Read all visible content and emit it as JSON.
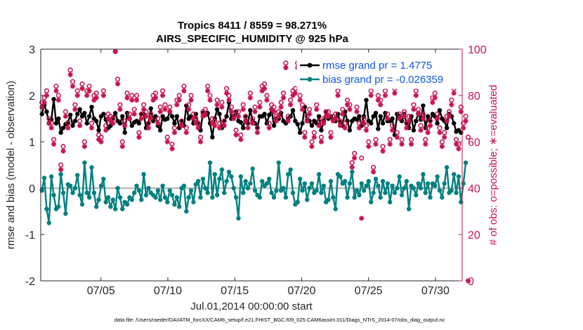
{
  "chart_data": {
    "type": "line",
    "title": "Tropics 8411 / 8559 = 98.271%",
    "subtitle": "AIRS_SPECIFIC_HUMIDITY @ 925 hPa",
    "xlabel": "Jul.01,2014 00:00:00 start",
    "ylabel": "rmse and bias (model - observation)",
    "y2label": "# of obs: o=possible; ∗=evaluated",
    "xlim": [
      0,
      31.5
    ],
    "ylim": [
      -2,
      3
    ],
    "y2lim": [
      0,
      100
    ],
    "x_ticks": [
      4.5,
      9.5,
      14.5,
      19.5,
      24.5,
      29.5
    ],
    "x_tick_labels": [
      "07/05",
      "07/10",
      "07/15",
      "07/20",
      "07/25",
      "07/30"
    ],
    "y_ticks": [
      -2,
      -1,
      0,
      1,
      2,
      3
    ],
    "y_tick_labels": [
      "-2",
      "-1",
      "0",
      "1",
      "2",
      "3"
    ],
    "y2_ticks": [
      0,
      20,
      40,
      60,
      80,
      100
    ],
    "y2_tick_labels": [
      "0",
      "20",
      "40",
      "60",
      "80",
      "100"
    ],
    "grid": false,
    "legend_position": "top-right",
    "series": [
      {
        "name": "rmse grand pr = 1.4775",
        "axis": "left",
        "color": "#000000",
        "marker": "filled-circle",
        "values": [
          1.6,
          1.8,
          1.65,
          1.4,
          1.48,
          1.92,
          1.4,
          1.5,
          1.2,
          1.3,
          1.38,
          1.42,
          1.58,
          1.35,
          1.45,
          1.6,
          1.7,
          1.55,
          1.62,
          1.4,
          1.55,
          1.75,
          1.5,
          1.45,
          1.25,
          1.55,
          1.6,
          1.48,
          1.3,
          1.35,
          1.52,
          1.62,
          1.45,
          1.4,
          1.55,
          1.2,
          1.62,
          1.5,
          1.35,
          1.42,
          1.45,
          1.4,
          1.6,
          1.6,
          1.3,
          1.4,
          1.72,
          1.45,
          1.55,
          1.35,
          1.25,
          1.55,
          1.48,
          1.5,
          1.65,
          1.55,
          1.4,
          1.55,
          1.3,
          1.45,
          1.35,
          1.78,
          1.5,
          1.55,
          1.4,
          1.6,
          1.4,
          1.25,
          1.62,
          1.58,
          1.62,
          1.4,
          1.1,
          1.5,
          1.7,
          1.6,
          1.3,
          1.45,
          1.55,
          1.85,
          1.5,
          1.55,
          1.65,
          1.45,
          1.42,
          1.3,
          1.55,
          1.4,
          1.68,
          1.45,
          1.4,
          1.3,
          1.55,
          1.55,
          1.6,
          1.4,
          1.58,
          1.7,
          1.35,
          1.5,
          1.5,
          1.62,
          1.45,
          1.4,
          1.5,
          1.55,
          1.68,
          1.45,
          1.38,
          1.2,
          1.4,
          1.75,
          1.48,
          1.45,
          1.35,
          1.45,
          1.4,
          1.55,
          1.25,
          1.45,
          1.65,
          1.5,
          1.55,
          1.48,
          1.45,
          1.6,
          1.42,
          1.35,
          1.65,
          1.45,
          1.25,
          1.45,
          1.5,
          1.48,
          1.55,
          1.35,
          1.55,
          1.9,
          1.45,
          1.4,
          1.55,
          1.62,
          1.28,
          1.55,
          1.4,
          1.62,
          1.45,
          1.45,
          1.5,
          1.15,
          1.6,
          1.55,
          1.45,
          1.6,
          1.4,
          1.3,
          1.55,
          1.25,
          1.45,
          1.62,
          1.48,
          1.78,
          1.3,
          1.55,
          1.45,
          1.6,
          1.55,
          1.4,
          1.68,
          1.5,
          1.45,
          1.3,
          1.6,
          1.55,
          1.4,
          1.22,
          1.25,
          1.2
        ]
      },
      {
        "name": "bias grand pr = -0.026359",
        "axis": "left",
        "color": "#008080",
        "marker": "filled-circle",
        "values": [
          -0.05,
          0.22,
          -0.45,
          -0.75,
          0.25,
          -0.15,
          -0.45,
          -0.4,
          0.3,
          -0.1,
          -0.55,
          0.08,
          0.05,
          -0.1,
          0.0,
          0.28,
          -0.15,
          -0.35,
          0.55,
          -0.1,
          -0.2,
          0.45,
          -0.1,
          -0.4,
          -0.25,
          0.05,
          0.2,
          -0.3,
          -0.2,
          -0.4,
          -0.25,
          -0.45,
          0.0,
          -0.2,
          -0.45,
          -0.3,
          -0.35,
          -0.2,
          -0.25,
          -0.1,
          0.05,
          -0.05,
          -0.25,
          0.3,
          -0.15,
          0.0,
          -0.1,
          -0.15,
          -0.2,
          -0.05,
          -0.25,
          0.05,
          -0.2,
          -0.3,
          -0.05,
          -0.15,
          -0.35,
          -0.2,
          -0.4,
          0.0,
          0.05,
          -0.5,
          -0.2,
          -0.05,
          -0.3,
          0.08,
          0.15,
          -0.2,
          0.2,
          0.0,
          -0.1,
          0.55,
          -0.2,
          0.3,
          -0.15,
          0.2,
          0.4,
          -0.1,
          0.15,
          0.35,
          0.25,
          0.0,
          -0.2,
          -0.65,
          0.25,
          -0.1,
          0.15,
          0.0,
          0.1,
          0.42,
          -0.05,
          -0.15,
          -0.2,
          0.15,
          0.05,
          0.1,
          0.2,
          -0.1,
          -0.2,
          -0.05,
          0.55,
          -0.05,
          0.0,
          -0.2,
          0.3,
          0.4,
          -0.1,
          -0.35,
          -0.3,
          0.2,
          -0.05,
          0.1,
          -0.25,
          0.0,
          0.1,
          -0.1,
          -0.05,
          0.3,
          -0.1,
          0.05,
          -0.3,
          -0.25,
          0.15,
          -0.2,
          -0.45,
          0.3,
          0.25,
          0.1,
          0.15,
          -0.2,
          0.1,
          0.35,
          -0.2,
          -0.05,
          -0.15,
          0.1,
          -0.05,
          0.05,
          0.15,
          -0.3,
          -0.1,
          0.2,
          0.05,
          -0.2,
          0.15,
          -0.1,
          0.1,
          -0.3,
          0.05,
          -0.1,
          0.0,
          0.25,
          -0.15,
          0.0,
          0.15,
          -0.45,
          0.05,
          0.0,
          -0.15,
          0.1,
          0.0,
          0.3,
          -0.1,
          0.1,
          -0.2,
          0.1,
          0.05,
          0.25,
          -0.05,
          -0.2,
          0.1,
          0.45,
          -0.1,
          -0.05,
          0.3,
          -0.1,
          0.25,
          -0.3,
          0.1,
          0.55
        ]
      },
      {
        "name": "possible",
        "axis": "right",
        "color": "#c8154d",
        "marker": "circle",
        "values": [
          77,
          79,
          82,
          70,
          68,
          61,
          84,
          80,
          50,
          58,
          73,
          68,
          91,
          86,
          76,
          82,
          69,
          85,
          60,
          82,
          84,
          68,
          80,
          81,
          63,
          62,
          82,
          67,
          72,
          71,
          70,
          99,
          87,
          76,
          60,
          69,
          81,
          72,
          80,
          74,
          80,
          64,
          72,
          76,
          73,
          68,
          72,
          80,
          81,
          70,
          75,
          82,
          76,
          62,
          75,
          59,
          66,
          78,
          80,
          69,
          84,
          66,
          76,
          80,
          72,
          70,
          68,
          62,
          73,
          74,
          84,
          80,
          70,
          69,
          78,
          68,
          77,
          69,
          83,
          80,
          75,
          72,
          65,
          73,
          63,
          76,
          71,
          68,
          81,
          70,
          75,
          66,
          77,
          84,
          85,
          80,
          68,
          76,
          75,
          71,
          73,
          77,
          81,
          94,
          71,
          78,
          82,
          83,
          94,
          80,
          76,
          64,
          71,
          74,
          60,
          64,
          76,
          69,
          62,
          70,
          73,
          73,
          64,
          71,
          72,
          82,
          69,
          74,
          68,
          78,
          76,
          51,
          55,
          75,
          68,
          53,
          70,
          67,
          60,
          82,
          49,
          61,
          80,
          78,
          58,
          82,
          72,
          61,
          67,
          83,
          64,
          72,
          61,
          73,
          68,
          71,
          61,
          76,
          82,
          74,
          67,
          72,
          61,
          66,
          69,
          79,
          81,
          72,
          66,
          60,
          64,
          71,
          73,
          78,
          83,
          61,
          59,
          75,
          68,
          71,
          62
        ]
      },
      {
        "name": "evaluated",
        "axis": "right",
        "color": "#c8154d",
        "marker": "asterisk",
        "values": [
          75,
          77,
          80,
          68,
          66,
          59,
          82,
          78,
          48,
          56,
          71,
          66,
          89,
          84,
          74,
          80,
          67,
          83,
          58,
          80,
          82,
          66,
          78,
          79,
          61,
          60,
          80,
          65,
          70,
          69,
          68,
          99,
          85,
          74,
          58,
          67,
          79,
          70,
          78,
          72,
          78,
          62,
          70,
          74,
          71,
          66,
          70,
          78,
          79,
          68,
          73,
          80,
          74,
          60,
          73,
          57,
          64,
          76,
          78,
          67,
          82,
          64,
          74,
          78,
          70,
          68,
          66,
          60,
          71,
          72,
          82,
          78,
          68,
          67,
          76,
          66,
          75,
          67,
          81,
          78,
          73,
          70,
          63,
          71,
          61,
          74,
          69,
          66,
          79,
          68,
          73,
          64,
          75,
          82,
          83,
          78,
          66,
          74,
          73,
          69,
          71,
          75,
          79,
          92,
          69,
          76,
          80,
          81,
          92,
          78,
          74,
          62,
          69,
          72,
          58,
          62,
          74,
          67,
          60,
          68,
          71,
          71,
          62,
          69,
          70,
          80,
          67,
          72,
          66,
          76,
          74,
          49,
          53,
          73,
          66,
          27,
          68,
          65,
          58,
          80,
          47,
          59,
          78,
          76,
          56,
          80,
          70,
          59,
          65,
          81,
          62,
          70,
          59,
          71,
          66,
          69,
          59,
          74,
          80,
          72,
          65,
          70,
          59,
          64,
          67,
          77,
          79,
          70,
          64,
          58,
          62,
          69,
          71,
          76,
          81,
          59,
          57,
          73,
          66,
          69,
          0
        ]
      }
    ]
  },
  "footer": {
    "data_file": "data file: /Users/raeder/DAI/ATM_forcXX/CAM6_setup/f.e21.FHIST_BGC.f09_025.CAM6assim.011/Diags_NTrS_2014-07/obs_diag_output.nc"
  }
}
